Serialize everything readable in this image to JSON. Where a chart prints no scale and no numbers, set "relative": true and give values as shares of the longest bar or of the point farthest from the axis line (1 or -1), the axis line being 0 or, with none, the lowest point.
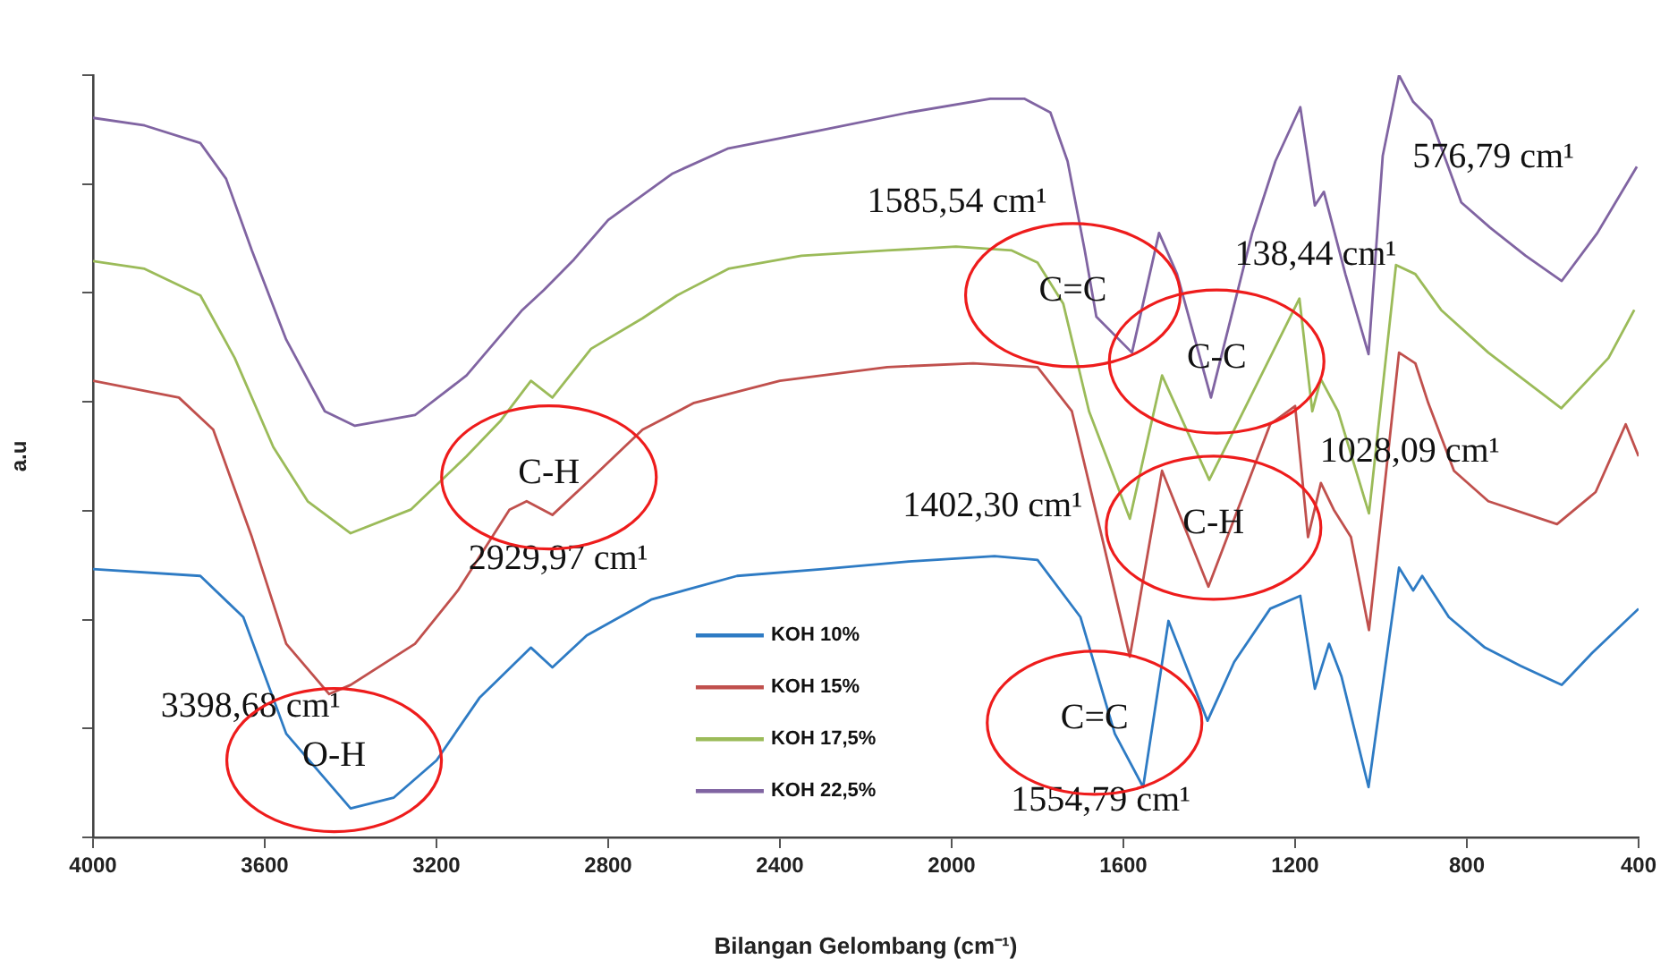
{
  "chart_data": {
    "type": "line",
    "xlabel": "Bilangan Gelombang (cm⁻¹)",
    "ylabel": "a.u",
    "relative": true,
    "xlim": [
      4000,
      400
    ],
    "xticks": [
      4000,
      3600,
      3200,
      2800,
      2400,
      2000,
      1600,
      1200,
      800,
      400
    ],
    "grid": false,
    "legend": "bottom",
    "marker": "none",
    "line_style": "solid",
    "series": [
      {
        "name": "KOH 10%",
        "color": "#2e7bc4",
        "x": [
          4000,
          3750,
          3650,
          3550,
          3400,
          3300,
          3200,
          3100,
          2980,
          2930,
          2850,
          2700,
          2500,
          2300,
          2100,
          1900,
          1800,
          1700,
          1620,
          1554,
          1495,
          1404,
          1342,
          1258,
          1188,
          1154,
          1121,
          1092,
          1029,
          958,
          925,
          904,
          842,
          758,
          675,
          579,
          508,
          400
        ],
        "values": [
          0.352,
          0.343,
          0.289,
          0.136,
          0.038,
          0.052,
          0.101,
          0.183,
          0.249,
          0.223,
          0.265,
          0.312,
          0.343,
          0.352,
          0.362,
          0.369,
          0.364,
          0.289,
          0.136,
          0.066,
          0.284,
          0.153,
          0.23,
          0.3,
          0.317,
          0.195,
          0.254,
          0.211,
          0.066,
          0.354,
          0.324,
          0.343,
          0.289,
          0.249,
          0.225,
          0.2,
          0.242,
          0.3
        ]
      },
      {
        "name": "KOH 15%",
        "color": "#c0504d",
        "x": [
          4000,
          3800,
          3720,
          3630,
          3550,
          3450,
          3400,
          3250,
          3150,
          3030,
          2990,
          2930,
          2850,
          2720,
          2600,
          2400,
          2150,
          1950,
          1800,
          1720,
          1650,
          1585,
          1510,
          1402,
          1258,
          1200,
          1170,
          1140,
          1110,
          1070,
          1028,
          958,
          920,
          890,
          830,
          750,
          590,
          500,
          430,
          400
        ],
        "values": [
          0.599,
          0.577,
          0.535,
          0.394,
          0.254,
          0.188,
          0.2,
          0.254,
          0.324,
          0.43,
          0.441,
          0.423,
          0.465,
          0.535,
          0.57,
          0.599,
          0.617,
          0.622,
          0.617,
          0.559,
          0.394,
          0.237,
          0.481,
          0.329,
          0.542,
          0.566,
          0.394,
          0.465,
          0.43,
          0.394,
          0.272,
          0.636,
          0.622,
          0.57,
          0.481,
          0.441,
          0.411,
          0.453,
          0.542,
          0.5
        ]
      },
      {
        "name": "KOH 17,5%",
        "color": "#9bbb59",
        "x": [
          4000,
          3880,
          3750,
          3670,
          3580,
          3500,
          3400,
          3260,
          3130,
          3050,
          2980,
          2930,
          2840,
          2720,
          2640,
          2520,
          2350,
          2150,
          1990,
          1860,
          1800,
          1740,
          1680,
          1640,
          1585,
          1510,
          1400,
          1190,
          1160,
          1140,
          1100,
          1028,
          965,
          920,
          860,
          750,
          580,
          470,
          410
        ],
        "values": [
          0.756,
          0.746,
          0.711,
          0.629,
          0.512,
          0.441,
          0.399,
          0.43,
          0.5,
          0.547,
          0.599,
          0.577,
          0.641,
          0.681,
          0.711,
          0.746,
          0.763,
          0.77,
          0.775,
          0.77,
          0.754,
          0.7,
          0.559,
          0.5,
          0.418,
          0.606,
          0.469,
          0.707,
          0.559,
          0.601,
          0.559,
          0.425,
          0.751,
          0.739,
          0.692,
          0.636,
          0.563,
          0.629,
          0.692
        ]
      },
      {
        "name": "KOH 22,5%",
        "color": "#8064a2",
        "x": [
          4000,
          3880,
          3750,
          3690,
          3630,
          3550,
          3460,
          3390,
          3250,
          3130,
          3000,
          2950,
          2880,
          2800,
          2650,
          2520,
          2310,
          2100,
          1910,
          1830,
          1770,
          1730,
          1690,
          1663,
          1580,
          1517,
          1475,
          1396,
          1300,
          1246,
          1188,
          1154,
          1133,
          1083,
          1029,
          996,
          958,
          925,
          883,
          813,
          746,
          663,
          579,
          496,
          404
        ],
        "values": [
          0.944,
          0.934,
          0.911,
          0.864,
          0.77,
          0.653,
          0.559,
          0.54,
          0.554,
          0.606,
          0.692,
          0.718,
          0.758,
          0.81,
          0.871,
          0.904,
          0.927,
          0.951,
          0.969,
          0.969,
          0.951,
          0.887,
          0.77,
          0.683,
          0.636,
          0.793,
          0.739,
          0.577,
          0.793,
          0.887,
          0.958,
          0.829,
          0.847,
          0.739,
          0.634,
          0.894,
          1,
          0.965,
          0.941,
          0.833,
          0.8,
          0.763,
          0.73,
          0.793,
          0.88
        ]
      }
    ],
    "annotations": [
      "3398,68 cm¹",
      "2929,97 cm¹",
      "1585,54 cm¹",
      "1402,30 cm¹",
      "1554,79 cm¹",
      "138,44 cm¹",
      "1028,09 cm¹",
      "576,79 cm¹",
      "O-H",
      "C-H",
      "C=C",
      "C-C",
      "C-H",
      "C=C"
    ]
  }
}
